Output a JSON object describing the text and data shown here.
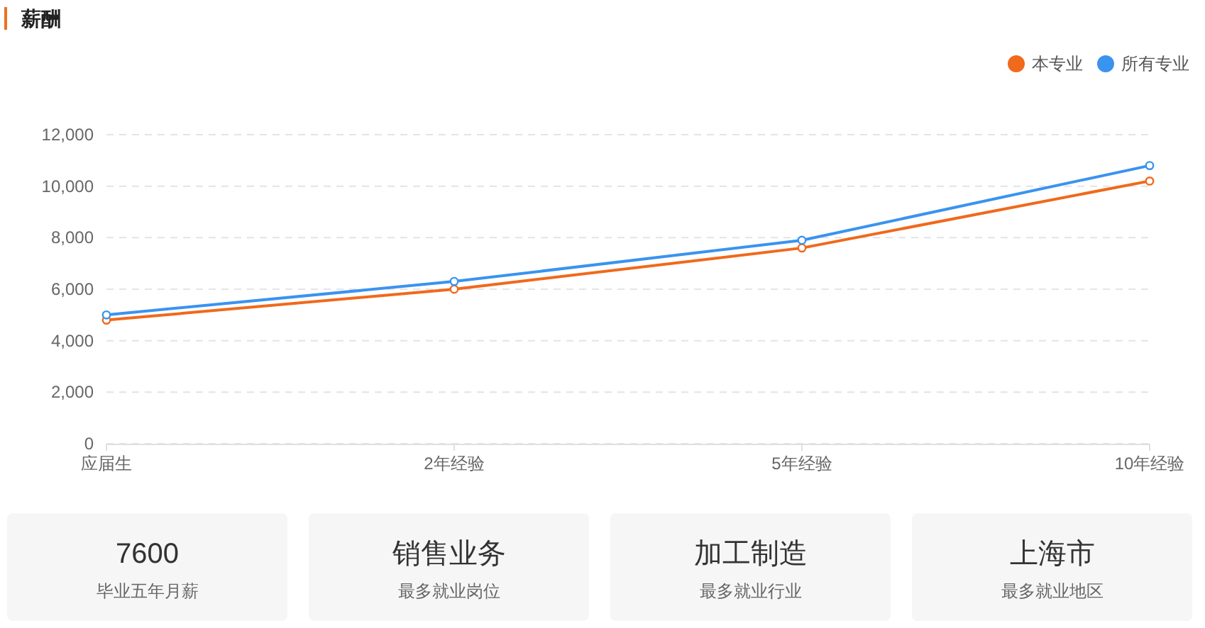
{
  "chart_data": [
    {
      "type": "line",
      "title": "薪酬",
      "categories": [
        "应届生",
        "2年经验",
        "5年经验",
        "10年经验"
      ],
      "series": [
        {
          "name": "本专业",
          "color": "#f0691c",
          "values": [
            4800,
            6000,
            7600,
            10200
          ]
        },
        {
          "name": "所有专业",
          "color": "#3a93ef",
          "values": [
            5000,
            6300,
            7900,
            10800
          ]
        }
      ],
      "ylim": [
        0,
        12000
      ],
      "yticks": [
        0,
        {
          "value": 2000,
          "label": "2,000"
        },
        {
          "value": 4000,
          "label": "4,000"
        },
        {
          "value": 6000,
          "label": "6,000"
        },
        {
          "value": 8000,
          "label": "8,000"
        },
        {
          "value": 10000,
          "label": "10,000"
        },
        {
          "value": 12000,
          "label": "12,000"
        }
      ],
      "grid": "y",
      "legend": "top right",
      "marker": "circle",
      "line_style": "solid"
    },
    {
      "type": "other",
      "annotations": [
        "7600",
        "毕业五年月薪",
        "销售业务",
        "最多就业岗位",
        "加工制造",
        "最多就业行业",
        "上海市",
        "最多就业地区"
      ]
    }
  ]
}
